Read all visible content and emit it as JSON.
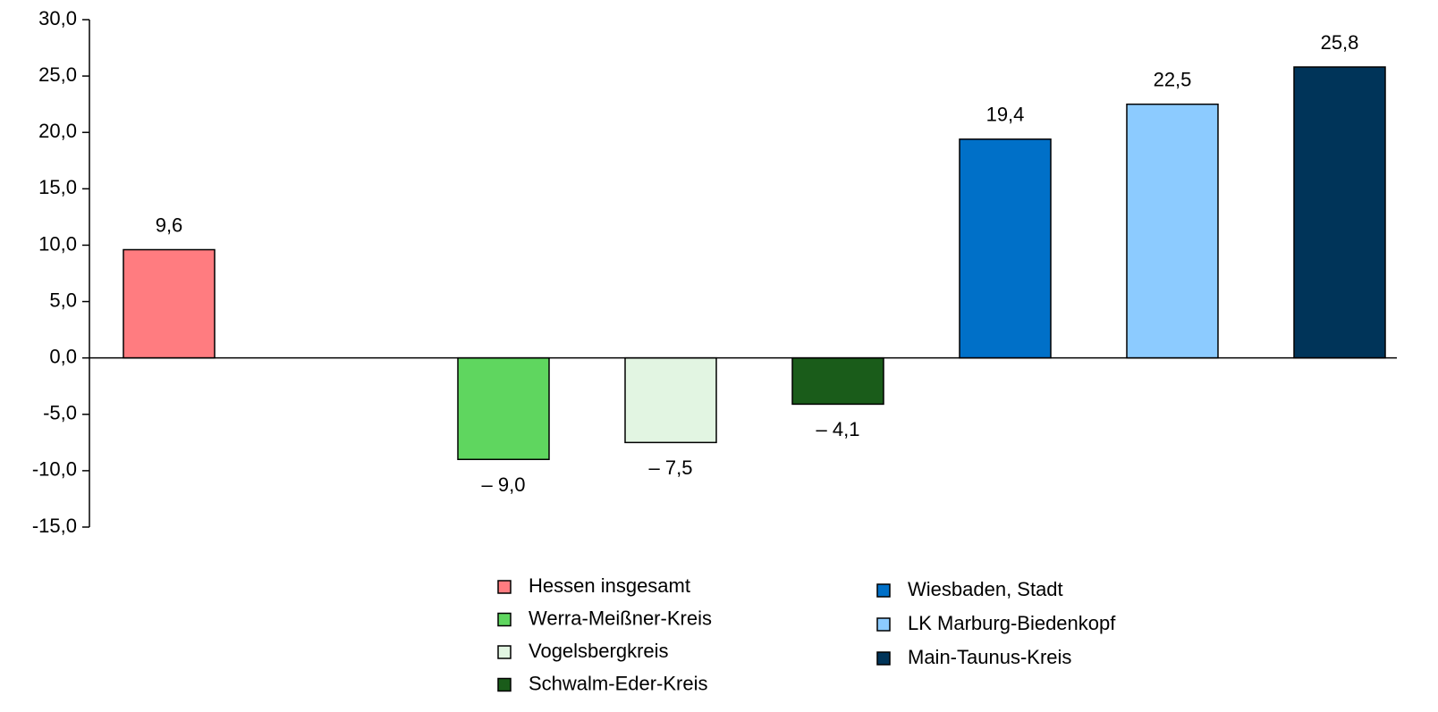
{
  "chart_data": {
    "type": "bar",
    "categories": [
      null,
      null,
      null,
      null,
      null,
      null,
      null,
      null
    ],
    "ylim": [
      -15,
      30
    ],
    "yticks": [
      {
        "value": -15,
        "label": "-15,0"
      },
      {
        "value": -10,
        "label": "-10,0"
      },
      {
        "value": -5,
        "label": "-5,0"
      },
      {
        "value": 0,
        "label": "0,0"
      },
      {
        "value": 5,
        "label": "5,0"
      },
      {
        "value": 10,
        "label": "10,0"
      },
      {
        "value": 15,
        "label": "15,0"
      },
      {
        "value": 20,
        "label": "20,0"
      },
      {
        "value": 25,
        "label": "25,0"
      },
      {
        "value": 30,
        "label": "30,0"
      }
    ],
    "series": [
      {
        "name": "Hessen insgesamt",
        "color": "#ff7c80",
        "values": [
          9.6,
          null,
          null,
          null,
          null,
          null,
          null,
          null
        ],
        "value_labels": [
          "9,6",
          null,
          null,
          null,
          null,
          null,
          null,
          null
        ]
      },
      {
        "name": "Werra-Meißner-Kreis",
        "color": "#5fd65f",
        "values": [
          null,
          null,
          -9.0,
          null,
          null,
          null,
          null,
          null
        ],
        "value_labels": [
          null,
          null,
          "– 9,0",
          null,
          null,
          null,
          null,
          null
        ]
      },
      {
        "name": "Vogelsbergkreis",
        "color": "#e2f5e2",
        "values": [
          null,
          null,
          null,
          -7.5,
          null,
          null,
          null,
          null
        ],
        "value_labels": [
          null,
          null,
          null,
          "– 7,5",
          null,
          null,
          null,
          null
        ]
      },
      {
        "name": "Schwalm-Eder-Kreis",
        "color": "#1a5c1a",
        "values": [
          null,
          null,
          null,
          null,
          -4.1,
          null,
          null,
          null
        ],
        "value_labels": [
          null,
          null,
          null,
          null,
          "– 4,1",
          null,
          null,
          null
        ]
      },
      {
        "name": "Wiesbaden, Stadt",
        "color": "#0070c8",
        "values": [
          null,
          null,
          null,
          null,
          null,
          19.4,
          null,
          null
        ],
        "value_labels": [
          null,
          null,
          null,
          null,
          null,
          "19,4",
          null,
          null
        ]
      },
      {
        "name": "LK Marburg-Biedenkopf",
        "color": "#8ccbff",
        "values": [
          null,
          null,
          null,
          null,
          null,
          null,
          22.5,
          null
        ],
        "value_labels": [
          null,
          null,
          null,
          null,
          null,
          null,
          "22,5",
          null
        ]
      },
      {
        "name": "Main-Taunus-Kreis",
        "color": "#003459",
        "values": [
          null,
          null,
          null,
          null,
          null,
          null,
          null,
          25.8
        ],
        "value_labels": [
          null,
          null,
          null,
          null,
          null,
          null,
          null,
          "25,8"
        ]
      }
    ]
  }
}
